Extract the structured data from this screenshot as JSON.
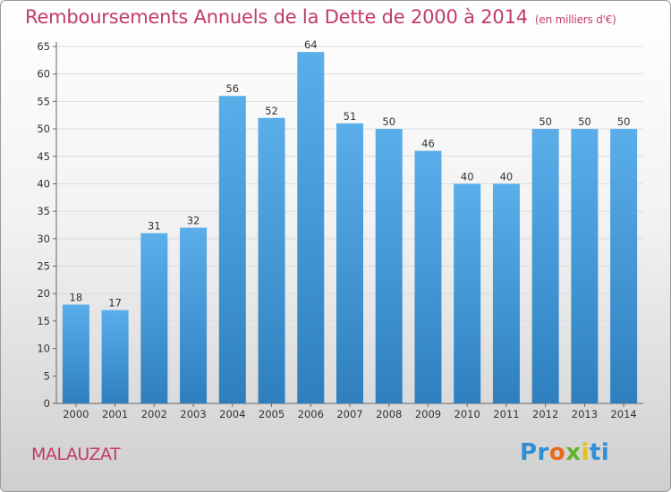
{
  "header": {
    "title": "Remboursements Annuels de la Dette de 2000 à 2014",
    "unit": "(en milliers d'€)"
  },
  "footer": {
    "commune": "MALAUZAT",
    "logo": "Proxiti"
  },
  "colors": {
    "title": "#c23a6b",
    "bar_top": "#5aaeea",
    "bar_bottom": "#2f7fbf"
  },
  "chart_data": {
    "type": "bar",
    "title": "Remboursements Annuels de la Dette de 2000 à 2014",
    "ylabel": "(en milliers d'€)",
    "xlabel": "",
    "categories": [
      "2000",
      "2001",
      "2002",
      "2003",
      "2004",
      "2005",
      "2006",
      "2007",
      "2008",
      "2009",
      "2010",
      "2011",
      "2012",
      "2013",
      "2014"
    ],
    "values": [
      18,
      17,
      31,
      32,
      56,
      52,
      64,
      51,
      50,
      46,
      40,
      40,
      50,
      50,
      50
    ],
    "ylim": [
      0,
      65
    ],
    "yticks": [
      0,
      5,
      10,
      15,
      20,
      25,
      30,
      35,
      40,
      45,
      50,
      55,
      60,
      65
    ],
    "grid": true,
    "legend": "none"
  }
}
